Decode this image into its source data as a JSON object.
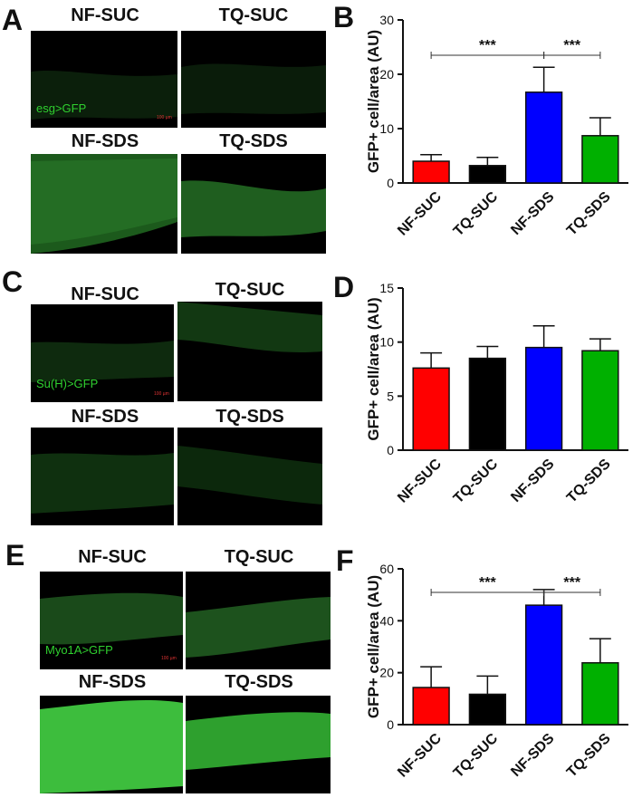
{
  "panels": {
    "A": {
      "letter": "A",
      "titles": [
        "NF-SUC",
        "TQ-SUC",
        "NF-SDS",
        "TQ-SDS"
      ],
      "genotype": "esg>GFP",
      "scale_bar": "100 µm"
    },
    "C": {
      "letter": "C",
      "titles": [
        "NF-SUC",
        "TQ-SUC",
        "NF-SDS",
        "TQ-SDS"
      ],
      "genotype": "Su(H)>GFP",
      "scale_bar": "100 µm"
    },
    "E": {
      "letter": "E",
      "titles": [
        "NF-SUC",
        "TQ-SUC",
        "NF-SDS",
        "TQ-SDS"
      ],
      "genotype": "Myo1A>GFP",
      "scale_bar": "100 µm"
    }
  },
  "chart_data": [
    {
      "letter": "B",
      "type": "bar",
      "categories": [
        "NF-SUC",
        "TQ-SUC",
        "NF-SDS",
        "TQ-SDS"
      ],
      "values": [
        4.0,
        3.2,
        16.7,
        8.7
      ],
      "errors": [
        1.2,
        1.5,
        4.6,
        3.3
      ],
      "colors": [
        "#ff0000",
        "#000000",
        "#0000ff",
        "#00b000"
      ],
      "ylabel": "GFP+ cell/area (AU)",
      "ylim": [
        0,
        30
      ],
      "yticks": [
        "0",
        "10",
        "20",
        "30"
      ],
      "significance": [
        {
          "from": 0,
          "to": 2,
          "label": "***"
        },
        {
          "from": 2,
          "to": 3,
          "label": "***"
        }
      ]
    },
    {
      "letter": "D",
      "type": "bar",
      "categories": [
        "NF-SUC",
        "TQ-SUC",
        "NF-SDS",
        "TQ-SDS"
      ],
      "values": [
        7.6,
        8.5,
        9.5,
        9.2
      ],
      "errors": [
        1.4,
        1.1,
        2.0,
        1.1
      ],
      "colors": [
        "#ff0000",
        "#000000",
        "#0000ff",
        "#00b000"
      ],
      "ylabel": "GFP+ cell/area (AU)",
      "ylim": [
        0,
        15
      ],
      "yticks": [
        "0",
        "5",
        "10",
        "15"
      ],
      "significance": []
    },
    {
      "letter": "F",
      "type": "bar",
      "categories": [
        "NF-SUC",
        "TQ-SUC",
        "NF-SDS",
        "TQ-SDS"
      ],
      "values": [
        14.3,
        11.7,
        46.0,
        23.8
      ],
      "errors": [
        8.0,
        7.0,
        6.0,
        9.3
      ],
      "colors": [
        "#ff0000",
        "#000000",
        "#0000ff",
        "#00b000"
      ],
      "ylabel": "GFP+ cell/area (AU)",
      "ylim": [
        0,
        60
      ],
      "yticks": [
        "0",
        "20",
        "40",
        "60"
      ],
      "significance": [
        {
          "from": 0,
          "to": 2,
          "label": "***"
        },
        {
          "from": 2,
          "to": 3,
          "label": "***"
        }
      ]
    }
  ]
}
